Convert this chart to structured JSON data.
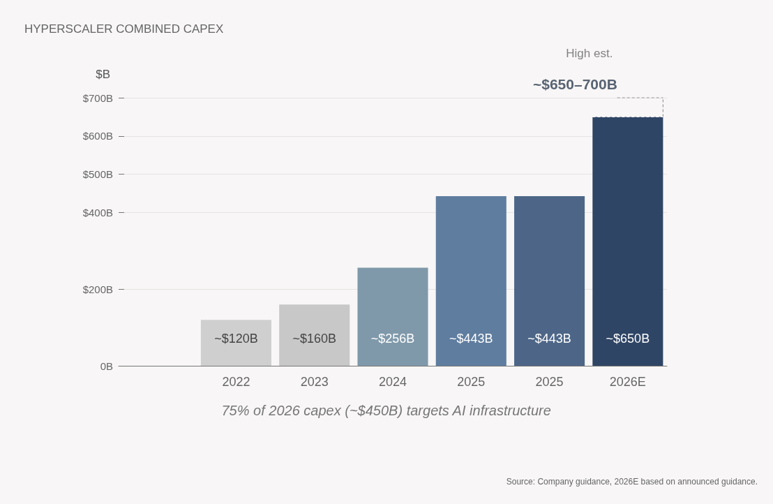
{
  "chart_data": {
    "type": "bar",
    "title": "HYPERSCALER COMBINED CAPEX",
    "ylabel": "$B",
    "categories": [
      null,
      "2022",
      "2023",
      "2024",
      "2025",
      "2025",
      "2026E"
    ],
    "values": [
      null,
      120,
      160,
      256,
      443,
      443,
      650
    ],
    "colors": [
      "#cfcfcf",
      "#cfcfcf",
      "#c8c8c8",
      "#7f99aa",
      "#5f7d9f",
      "#4d6688",
      "#2f4565"
    ],
    "value_labels": [
      null,
      "~$120B",
      "~$160B",
      "~$256B",
      "~$443B",
      "~$443B",
      "~$650B"
    ],
    "errors": [
      null,
      null,
      null,
      null,
      null,
      null,
      [
        650,
        700
      ]
    ],
    "ylim": [
      0,
      700
    ],
    "yticks": [
      {
        "value": 0,
        "label": "0B"
      },
      {
        "value": 200,
        "label": "$200B"
      },
      {
        "value": 400,
        "label": "$400B"
      },
      {
        "value": 500,
        "label": "$500B"
      },
      {
        "value": 600,
        "label": "$600B"
      },
      {
        "value": 700,
        "label": "$700B"
      }
    ],
    "grid": "y",
    "annotations": [
      "High est.",
      "~$650–700B",
      "75% of 2026 capex (~$450B) targets AI infrastructure",
      "Source: Company guidance, 2026E based on announced guidance."
    ]
  }
}
